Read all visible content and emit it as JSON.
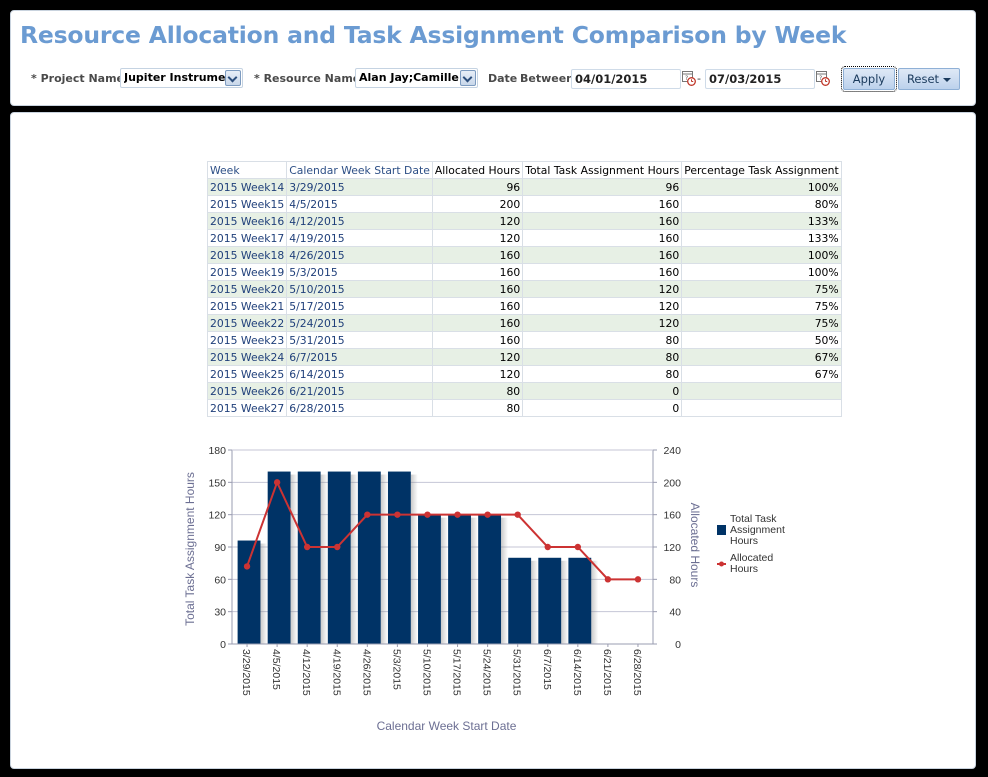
{
  "header": {
    "title": "Resource Allocation and Task Assignment Comparison by Week"
  },
  "filters": {
    "project_label": "* Project Name",
    "project_value": "Jupiter Instrume",
    "resource_label": "* Resource Name",
    "resource_value": "Alan Jay;Camille /",
    "date_label": "Date",
    "between_label": "Between",
    "date_from": "04/01/2015",
    "date_sep": "-",
    "date_to": "07/03/2015",
    "apply_label": "Apply",
    "reset_label": "Reset"
  },
  "table": {
    "columns": [
      "Week",
      "Calendar Week Start Date",
      "Allocated Hours",
      "Total Task Assignment Hours",
      "Percentage Task Assignment"
    ],
    "rows": [
      [
        "2015 Week14",
        "3/29/2015",
        "96",
        "96",
        "100%"
      ],
      [
        "2015 Week15",
        "4/5/2015",
        "200",
        "160",
        "80%"
      ],
      [
        "2015 Week16",
        "4/12/2015",
        "120",
        "160",
        "133%"
      ],
      [
        "2015 Week17",
        "4/19/2015",
        "120",
        "160",
        "133%"
      ],
      [
        "2015 Week18",
        "4/26/2015",
        "160",
        "160",
        "100%"
      ],
      [
        "2015 Week19",
        "5/3/2015",
        "160",
        "160",
        "100%"
      ],
      [
        "2015 Week20",
        "5/10/2015",
        "160",
        "120",
        "75%"
      ],
      [
        "2015 Week21",
        "5/17/2015",
        "160",
        "120",
        "75%"
      ],
      [
        "2015 Week22",
        "5/24/2015",
        "160",
        "120",
        "75%"
      ],
      [
        "2015 Week23",
        "5/31/2015",
        "160",
        "80",
        "50%"
      ],
      [
        "2015 Week24",
        "6/7/2015",
        "120",
        "80",
        "67%"
      ],
      [
        "2015 Week25",
        "6/14/2015",
        "120",
        "80",
        "67%"
      ],
      [
        "2015 Week26",
        "6/21/2015",
        "80",
        "0",
        ""
      ],
      [
        "2015 Week27",
        "6/28/2015",
        "80",
        "0",
        ""
      ]
    ]
  },
  "chart_data": {
    "type": "bar",
    "categories": [
      "3/29/2015",
      "4/5/2015",
      "4/12/2015",
      "4/19/2015",
      "4/26/2015",
      "5/3/2015",
      "5/10/2015",
      "5/17/2015",
      "5/24/2015",
      "5/31/2015",
      "6/7/2015",
      "6/14/2015",
      "6/21/2015",
      "6/28/2015"
    ],
    "series": [
      {
        "name": "Total Task Assignment Hours",
        "type": "bar",
        "axis": "left",
        "color": "#003366",
        "values": [
          96,
          160,
          160,
          160,
          160,
          160,
          120,
          120,
          120,
          80,
          80,
          80,
          0,
          0
        ]
      },
      {
        "name": "Allocated Hours",
        "type": "line",
        "axis": "right",
        "color": "#cc3333",
        "values": [
          96,
          200,
          120,
          120,
          160,
          160,
          160,
          160,
          160,
          160,
          120,
          120,
          80,
          80
        ]
      }
    ],
    "xlabel": "Calendar Week Start Date",
    "ylabel": "Total Task Assignment Hours",
    "y2label": "Allocated Hours",
    "ylim": [
      0,
      180
    ],
    "y2lim": [
      0,
      240
    ],
    "yticks": [
      0,
      30,
      60,
      90,
      120,
      150,
      180
    ],
    "y2ticks": [
      0,
      40,
      80,
      120,
      160,
      200,
      240
    ],
    "grid": true,
    "legend": {
      "position": "right",
      "entries": [
        "Total Task Assignment Hours",
        "Allocated Hours"
      ],
      "lines": [
        [
          "Total Task",
          "Assignment",
          "Hours"
        ],
        [
          "Allocated",
          "Hours"
        ]
      ]
    }
  }
}
